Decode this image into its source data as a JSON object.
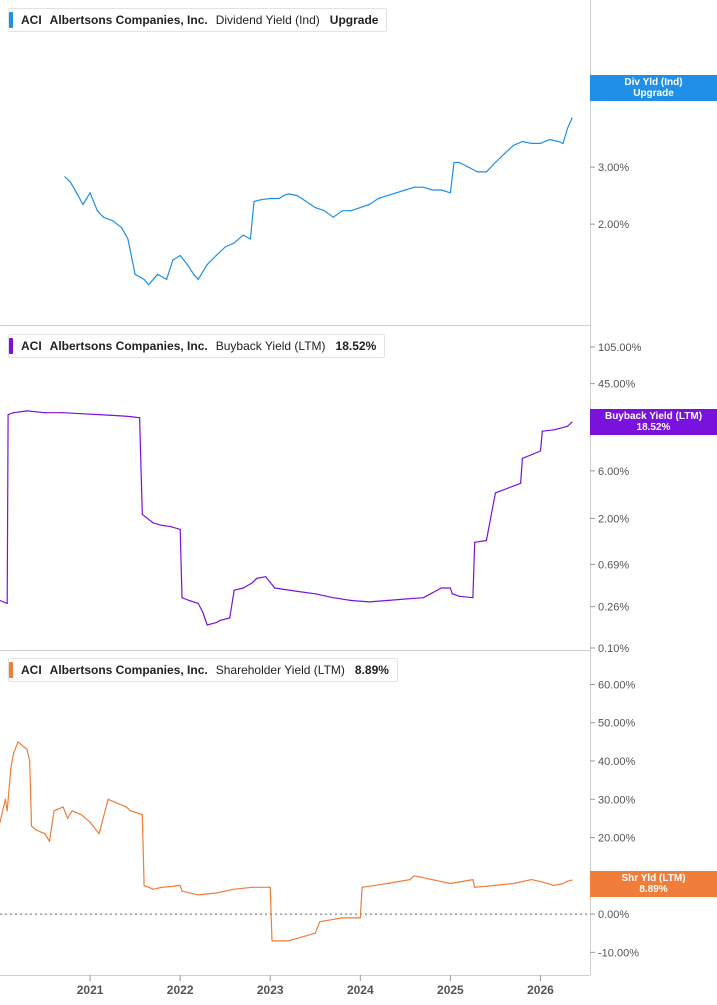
{
  "chart_data": [
    {
      "type": "line",
      "ticker": "ACI",
      "company": "Albertsons Companies, Inc.",
      "metric": "Dividend Yield (Ind)",
      "current_value": "Upgrade",
      "badge": [
        "Div Yld (Ind)",
        "Upgrade"
      ],
      "color": "#1f8fe8",
      "scale": "log",
      "ylim": [
        1.15,
        7.3
      ],
      "yticks": [
        {
          "v": 5,
          "label": "5.00%"
        },
        {
          "v": 3,
          "label": "3.00%"
        },
        {
          "v": 2,
          "label": "2.00%"
        }
      ],
      "series": [
        {
          "x": [
            2020.72,
            2020.78,
            2020.85,
            2020.92,
            2021.0,
            2021.08,
            2021.15,
            2021.25,
            2021.35,
            2021.42,
            2021.5,
            2021.6,
            2021.65,
            2021.75,
            2021.85,
            2021.92,
            2022.0,
            2022.08,
            2022.15,
            2022.2,
            2022.3,
            2022.4,
            2022.5,
            2022.6,
            2022.7,
            2022.78,
            2022.82,
            2022.9,
            2023.0,
            2023.1,
            2023.15,
            2023.2,
            2023.3,
            2023.4,
            2023.5,
            2023.6,
            2023.7,
            2023.8,
            2023.9,
            2024.0,
            2024.1,
            2024.2,
            2024.3,
            2024.4,
            2024.5,
            2024.6,
            2024.7,
            2024.8,
            2024.9,
            2025.0,
            2025.04,
            2025.1,
            2025.2,
            2025.3,
            2025.4,
            2025.5,
            2025.6,
            2025.7,
            2025.8,
            2025.9,
            2026.0,
            2026.1,
            2026.2,
            2026.25,
            2026.3,
            2026.35
          ],
          "y": [
            2.8,
            2.7,
            2.5,
            2.3,
            2.5,
            2.2,
            2.1,
            2.05,
            1.95,
            1.8,
            1.4,
            1.35,
            1.3,
            1.4,
            1.35,
            1.55,
            1.6,
            1.5,
            1.4,
            1.35,
            1.5,
            1.6,
            1.7,
            1.75,
            1.85,
            1.8,
            2.35,
            2.38,
            2.4,
            2.4,
            2.45,
            2.48,
            2.45,
            2.35,
            2.25,
            2.2,
            2.1,
            2.2,
            2.2,
            2.25,
            2.3,
            2.4,
            2.45,
            2.5,
            2.55,
            2.6,
            2.6,
            2.55,
            2.55,
            2.5,
            3.1,
            3.1,
            3.0,
            2.9,
            2.9,
            3.1,
            3.3,
            3.5,
            3.6,
            3.55,
            3.55,
            3.65,
            3.6,
            3.55,
            3.95,
            4.25
          ]
        }
      ]
    },
    {
      "type": "line",
      "ticker": "ACI",
      "company": "Albertsons Companies, Inc.",
      "metric": "Buyback Yield (LTM)",
      "current_value": "18.52%",
      "badge": [
        "Buyback Yield (LTM)",
        "18.52%"
      ],
      "color": "#7a12dd",
      "scale": "log",
      "ylim": [
        0.1,
        105
      ],
      "yticks": [
        {
          "v": 105,
          "label": "105.00%"
        },
        {
          "v": 45,
          "label": "45.00%"
        },
        {
          "v": 15,
          "label": "15.00%"
        },
        {
          "v": 6,
          "label": "6.00%"
        },
        {
          "v": 2,
          "label": "2.00%"
        },
        {
          "v": 0.69,
          "label": "0.69%"
        },
        {
          "v": 0.26,
          "label": "0.26%"
        },
        {
          "v": 0.1,
          "label": "0.10%"
        }
      ],
      "series": [
        {
          "x": [
            2020.0,
            2020.08,
            2020.09,
            2020.15,
            2020.3,
            2020.5,
            2020.7,
            2020.9,
            2021.1,
            2021.3,
            2021.45,
            2021.55,
            2021.58,
            2021.7,
            2021.8,
            2021.9,
            2022.0,
            2022.02,
            2022.1,
            2022.2,
            2022.25,
            2022.3,
            2022.4,
            2022.45,
            2022.55,
            2022.6,
            2022.7,
            2022.8,
            2022.85,
            2022.95,
            2023.05,
            2023.3,
            2023.5,
            2023.7,
            2023.9,
            2024.1,
            2024.3,
            2024.5,
            2024.7,
            2024.9,
            2025.0,
            2025.02,
            2025.1,
            2025.25,
            2025.27,
            2025.4,
            2025.5,
            2025.78,
            2025.8,
            2026.0,
            2026.02,
            2026.15,
            2026.3,
            2026.35
          ],
          "y": [
            0.3,
            0.28,
            22,
            23,
            24,
            23,
            23,
            22.5,
            22,
            21.5,
            21,
            20.5,
            2.2,
            1.8,
            1.7,
            1.65,
            1.55,
            0.32,
            0.3,
            0.28,
            0.23,
            0.17,
            0.18,
            0.19,
            0.2,
            0.38,
            0.4,
            0.45,
            0.5,
            0.52,
            0.4,
            0.37,
            0.35,
            0.32,
            0.3,
            0.29,
            0.3,
            0.31,
            0.32,
            0.4,
            0.4,
            0.35,
            0.33,
            0.32,
            1.15,
            1.2,
            3.6,
            4.5,
            8.0,
            9.5,
            15.0,
            15.5,
            16.8,
            18.52
          ]
        }
      ]
    },
    {
      "type": "line",
      "ticker": "ACI",
      "company": "Albertsons Companies, Inc.",
      "metric": "Shareholder Yield (LTM)",
      "current_value": "8.89%",
      "badge": [
        "Shr Yld (LTM)",
        "8.89%"
      ],
      "color": "#f07d3a",
      "scale": "linear",
      "ylim": [
        -12,
        63
      ],
      "yticks": [
        {
          "v": 60,
          "label": "60.00%"
        },
        {
          "v": 50,
          "label": "50.00%"
        },
        {
          "v": 40,
          "label": "40.00%"
        },
        {
          "v": 30,
          "label": "30.00%"
        },
        {
          "v": 20,
          "label": "20.00%"
        },
        {
          "v": 10,
          "label": "10.00%"
        },
        {
          "v": 0,
          "label": "0.00%"
        },
        {
          "v": -10,
          "label": "-10.00%"
        }
      ],
      "series": [
        {
          "x": [
            2020.0,
            2020.04,
            2020.06,
            2020.08,
            2020.12,
            2020.15,
            2020.2,
            2020.25,
            2020.3,
            2020.33,
            2020.35,
            2020.4,
            2020.5,
            2020.55,
            2020.6,
            2020.7,
            2020.75,
            2020.8,
            2020.9,
            2021.0,
            2021.1,
            2021.2,
            2021.3,
            2021.4,
            2021.45,
            2021.58,
            2021.6,
            2021.7,
            2021.8,
            2021.9,
            2022.0,
            2022.02,
            2022.2,
            2022.4,
            2022.6,
            2022.8,
            2023.0,
            2023.02,
            2023.2,
            2023.5,
            2023.55,
            2023.8,
            2024.0,
            2024.02,
            2024.3,
            2024.55,
            2024.6,
            2024.9,
            2025.0,
            2025.25,
            2025.27,
            2025.5,
            2025.7,
            2025.9,
            2026.0,
            2026.15,
            2026.25,
            2026.3,
            2026.35
          ],
          "y": [
            24,
            28,
            30,
            27,
            38,
            42,
            45,
            44,
            43,
            40,
            23,
            22,
            21,
            19,
            27,
            28,
            25,
            27,
            26,
            24,
            21,
            30,
            29,
            28,
            27,
            26,
            7.5,
            6.5,
            7,
            7.2,
            7.5,
            6,
            5,
            5.5,
            6.5,
            7,
            7,
            -7,
            -7,
            -5,
            -2,
            -1,
            -1,
            7,
            8,
            9,
            10,
            8.5,
            8,
            9,
            7,
            7.5,
            8,
            9,
            8.5,
            7.5,
            8,
            8.6,
            8.89
          ]
        }
      ]
    }
  ],
  "x_axis": {
    "labels": [
      "2021",
      "2022",
      "2023",
      "2024",
      "2025",
      "2026"
    ],
    "range": [
      2020.0,
      2026.55
    ]
  }
}
